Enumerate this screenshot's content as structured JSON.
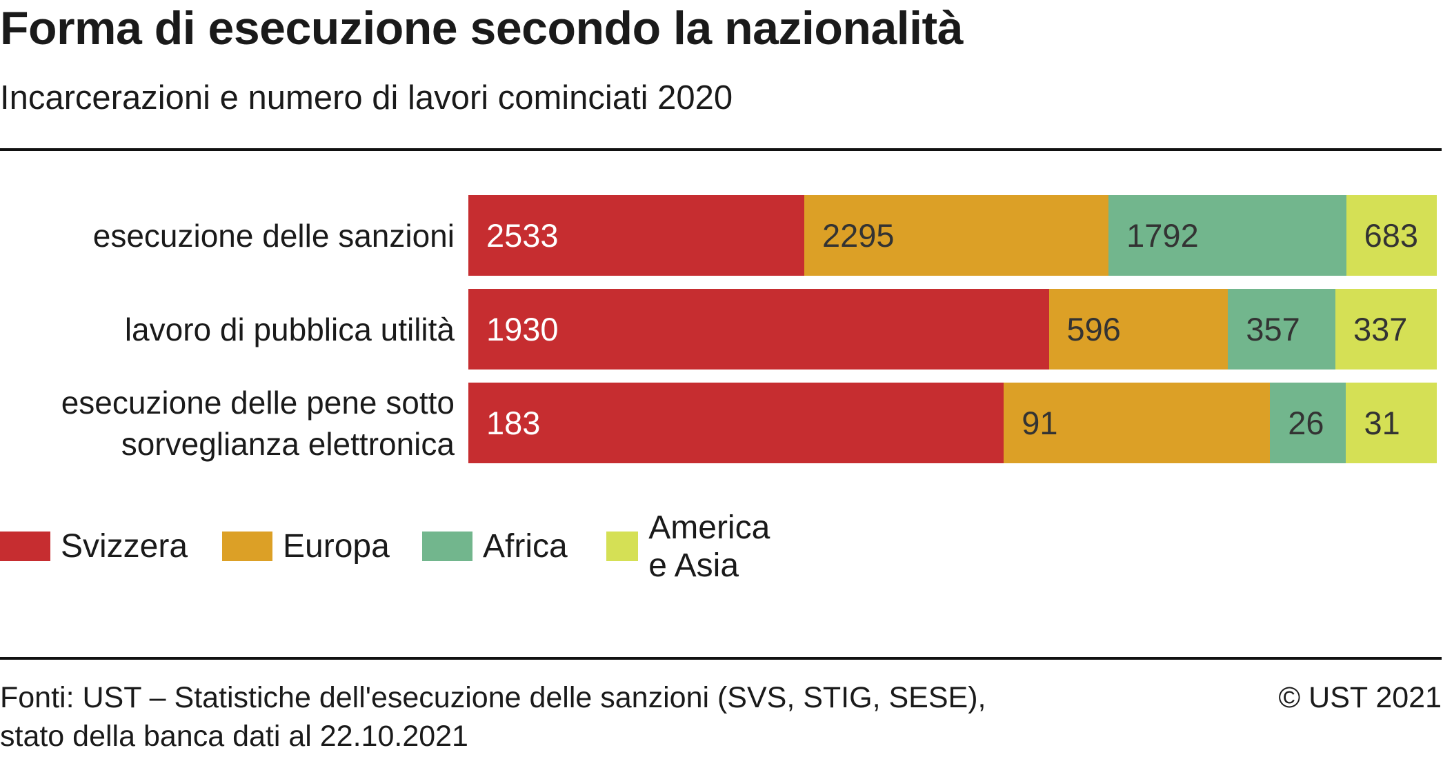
{
  "title": "Forma di esecuzione secondo la nazionalità",
  "subtitle": "Incarcerazioni e numero di lavori cominciati 2020",
  "footer": {
    "source_line1": "Fonti: UST – Statistiche dell'esecuzione delle sanzioni (SVS, STIG, SESE),",
    "source_line2": "stato della banca dati al 22.10.2021",
    "copyright": "© UST 2021"
  },
  "chart_data": {
    "type": "bar",
    "orientation": "horizontal",
    "stacked": "100%",
    "title": "Forma di esecuzione secondo la nazionalità",
    "subtitle": "Incarcerazioni e numero di lavori cominciati 2020",
    "categories": [
      "esecuzione delle sanzioni",
      "lavoro di pubblica utilità",
      "esecuzione delle pene sotto sorveglianza elettronica"
    ],
    "series": [
      {
        "name": "Svizzera",
        "color": "#c62d30",
        "label_color": "#ffffff",
        "values": [
          2533,
          1930,
          183
        ]
      },
      {
        "name": "Europa",
        "color": "#dca026",
        "label_color": "#333333",
        "values": [
          2295,
          596,
          91
        ]
      },
      {
        "name": "Africa",
        "color": "#72b68d",
        "label_color": "#333333",
        "values": [
          1792,
          357,
          26
        ]
      },
      {
        "name": "America e Asia",
        "color": "#d5e055",
        "label_color": "#333333",
        "values": [
          683,
          337,
          31
        ]
      }
    ],
    "legend": "bottom-left",
    "grid": false,
    "data_labels": true
  }
}
